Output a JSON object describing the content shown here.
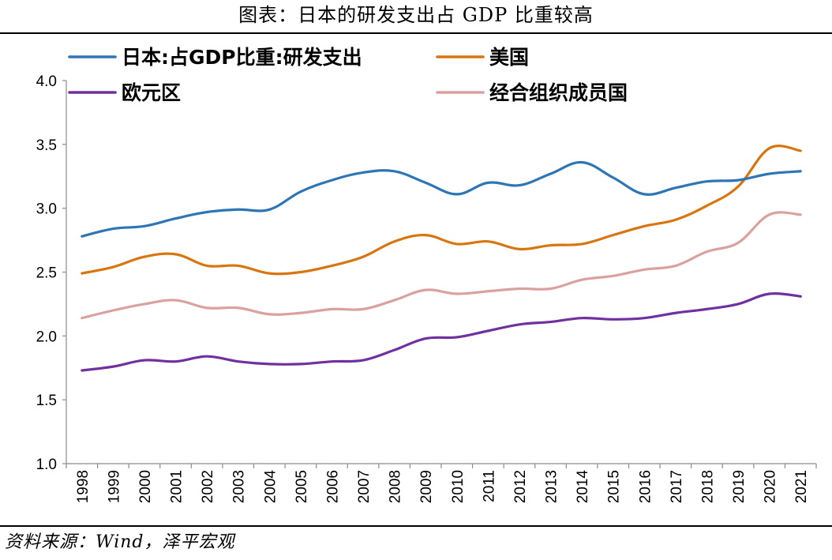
{
  "header": {
    "title": "图表：日本的研发支出占 GDP 比重较高"
  },
  "footer": {
    "source": "资料来源：Wind，泽平宏观"
  },
  "chart_data": {
    "type": "line",
    "title": "图表：日本的研发支出占 GDP 比重较高",
    "xlabel": "",
    "ylabel": "",
    "ylim": [
      1.0,
      4.0
    ],
    "yticks": [
      "1.0",
      "1.5",
      "2.0",
      "2.5",
      "3.0",
      "3.5",
      "4.0"
    ],
    "categories": [
      "1998",
      "1999",
      "2000",
      "2001",
      "2002",
      "2003",
      "2004",
      "2005",
      "2006",
      "2007",
      "2008",
      "2009",
      "2010",
      "2011",
      "2012",
      "2013",
      "2014",
      "2015",
      "2016",
      "2017",
      "2018",
      "2019",
      "2020",
      "2021"
    ],
    "grid": false,
    "legend_position": "top",
    "series": [
      {
        "name": "日本:占GDP比重:研发支出",
        "color": "#2E75B6",
        "values": [
          2.78,
          2.84,
          2.86,
          2.92,
          2.97,
          2.99,
          2.99,
          3.13,
          3.22,
          3.28,
          3.29,
          3.2,
          3.11,
          3.2,
          3.18,
          3.27,
          3.36,
          3.24,
          3.11,
          3.16,
          3.21,
          3.22,
          3.27,
          3.29
        ]
      },
      {
        "name": "美国",
        "color": "#D8750F",
        "values": [
          2.49,
          2.54,
          2.62,
          2.64,
          2.55,
          2.55,
          2.49,
          2.5,
          2.55,
          2.62,
          2.74,
          2.79,
          2.72,
          2.74,
          2.68,
          2.71,
          2.72,
          2.79,
          2.86,
          2.91,
          3.02,
          3.17,
          3.47,
          3.45
        ]
      },
      {
        "name": "欧元区",
        "color": "#7030A0",
        "values": [
          1.73,
          1.76,
          1.81,
          1.8,
          1.84,
          1.8,
          1.78,
          1.78,
          1.8,
          1.81,
          1.89,
          1.98,
          1.99,
          2.04,
          2.09,
          2.11,
          2.14,
          2.13,
          2.14,
          2.18,
          2.21,
          2.25,
          2.33,
          2.31
        ]
      },
      {
        "name": "经合组织成员国",
        "color": "#DBA0A0",
        "values": [
          2.14,
          2.2,
          2.25,
          2.28,
          2.22,
          2.22,
          2.17,
          2.18,
          2.21,
          2.21,
          2.28,
          2.36,
          2.33,
          2.35,
          2.37,
          2.37,
          2.44,
          2.47,
          2.52,
          2.55,
          2.66,
          2.73,
          2.95,
          2.95
        ]
      }
    ]
  }
}
